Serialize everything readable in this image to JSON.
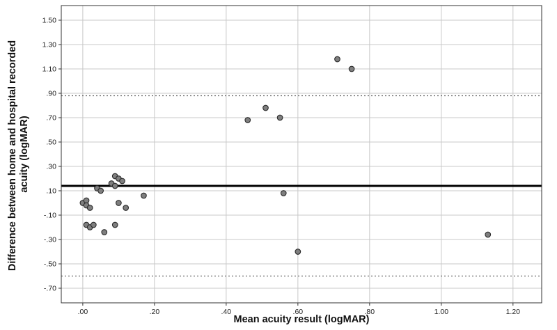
{
  "chart_data": {
    "type": "scatter",
    "title": "",
    "xlabel": "Mean acuity result (logMAR)",
    "ylabel": "Difference between home and hospital recorded acuity (logMAR)",
    "ylabel_lines": [
      "Difference between home and hospital recorded",
      "acuity (logMAR)"
    ],
    "xlim": [
      -0.06,
      1.28
    ],
    "ylim": [
      -0.82,
      1.62
    ],
    "x_ticks": [
      0.0,
      0.2,
      0.4,
      0.6,
      0.8,
      1.0,
      1.2
    ],
    "x_tick_labels": [
      ".00",
      ".20",
      ".40",
      ".60",
      ".80",
      "1.00",
      "1.20"
    ],
    "y_ticks": [
      1.5,
      1.3,
      1.1,
      0.9,
      0.7,
      0.5,
      0.3,
      0.1,
      -0.1,
      -0.3,
      -0.5,
      -0.7
    ],
    "y_tick_labels": [
      "1.50",
      "1.30",
      "1.10",
      ".90",
      ".70",
      ".50",
      ".30",
      ".10",
      "-.10",
      "-.30",
      "-.50",
      "-.70"
    ],
    "grid": true,
    "reference_lines": [
      {
        "kind": "mean",
        "y": 0.14,
        "style": "solid"
      },
      {
        "kind": "upper-limit",
        "y": 0.88,
        "style": "dotted"
      },
      {
        "kind": "lower-limit",
        "y": -0.6,
        "style": "dotted"
      }
    ],
    "points": [
      {
        "x": 0.0,
        "y": 0.0
      },
      {
        "x": 0.01,
        "y": 0.02
      },
      {
        "x": 0.01,
        "y": -0.02
      },
      {
        "x": 0.02,
        "y": -0.04
      },
      {
        "x": 0.01,
        "y": -0.18
      },
      {
        "x": 0.02,
        "y": -0.2
      },
      {
        "x": 0.03,
        "y": -0.18
      },
      {
        "x": 0.04,
        "y": 0.12
      },
      {
        "x": 0.05,
        "y": 0.1
      },
      {
        "x": 0.06,
        "y": -0.24
      },
      {
        "x": 0.08,
        "y": 0.16
      },
      {
        "x": 0.09,
        "y": 0.14
      },
      {
        "x": 0.09,
        "y": 0.22
      },
      {
        "x": 0.1,
        "y": 0.2
      },
      {
        "x": 0.11,
        "y": 0.18
      },
      {
        "x": 0.1,
        "y": 0.0
      },
      {
        "x": 0.09,
        "y": -0.18
      },
      {
        "x": 0.12,
        "y": -0.04
      },
      {
        "x": 0.17,
        "y": 0.06
      },
      {
        "x": 0.46,
        "y": 0.68
      },
      {
        "x": 0.51,
        "y": 0.78
      },
      {
        "x": 0.55,
        "y": 0.7
      },
      {
        "x": 0.56,
        "y": 0.08
      },
      {
        "x": 0.6,
        "y": -0.4
      },
      {
        "x": 0.71,
        "y": 1.18
      },
      {
        "x": 0.75,
        "y": 1.1
      },
      {
        "x": 1.13,
        "y": -0.26
      }
    ],
    "colors": {
      "point_fill": "#7f7f7f",
      "point_stroke": "#2b2b2b",
      "grid": "#c8c8c8",
      "mean_line": "#000000",
      "limit_line": "#666666",
      "frame": "#333333"
    }
  }
}
